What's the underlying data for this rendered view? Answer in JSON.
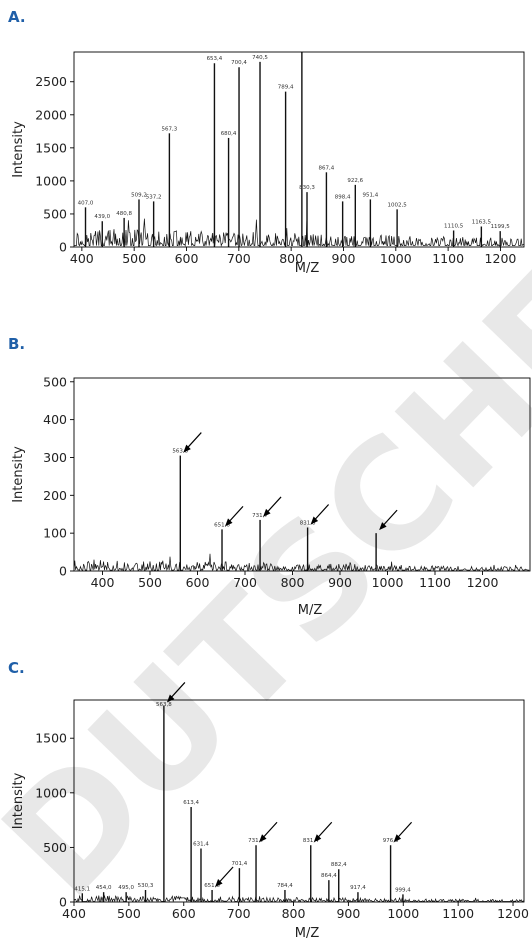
{
  "colors": {
    "panel_letter": "#1f5fa8",
    "trace": "#111111",
    "watermark": "#e8e8e8"
  },
  "watermark": "DUTSCHER",
  "chart_data": [
    {
      "type": "line",
      "panel": "A.",
      "xlabel": "M/Z",
      "ylabel": "Intensity",
      "xlim": [
        385,
        1245
      ],
      "ylim": [
        0,
        2950
      ],
      "xticks": [
        400,
        500,
        600,
        700,
        800,
        900,
        1000,
        1100,
        1200
      ],
      "yticks": [
        0,
        500,
        1000,
        1500,
        2000,
        2500
      ],
      "noise_level": 260,
      "peaks": [
        {
          "x": 407.0,
          "y": 600,
          "label": "407,0"
        },
        {
          "x": 439.0,
          "y": 390,
          "label": "439,0"
        },
        {
          "x": 480.8,
          "y": 440,
          "label": "480,8"
        },
        {
          "x": 509.2,
          "y": 720,
          "label": "509,2"
        },
        {
          "x": 537.2,
          "y": 690,
          "label": "537,2"
        },
        {
          "x": 567.3,
          "y": 1720,
          "label": "567,3"
        },
        {
          "x": 653.4,
          "y": 2780,
          "label": "653,4"
        },
        {
          "x": 680.4,
          "y": 1650,
          "label": "680,4"
        },
        {
          "x": 700.4,
          "y": 2720,
          "label": "700,4"
        },
        {
          "x": 740.5,
          "y": 2800,
          "label": "740,5"
        },
        {
          "x": 789.4,
          "y": 2350,
          "label": "789,4"
        },
        {
          "x": 820.5,
          "y": 2950,
          "label": ""
        },
        {
          "x": 830.3,
          "y": 830,
          "label": "830,3"
        },
        {
          "x": 867.4,
          "y": 1130,
          "label": "867,4"
        },
        {
          "x": 898.4,
          "y": 690,
          "label": "898,4"
        },
        {
          "x": 922.6,
          "y": 940,
          "label": "922,6"
        },
        {
          "x": 951.4,
          "y": 720,
          "label": "951,4"
        },
        {
          "x": 1002.5,
          "y": 570,
          "label": "1002,5"
        },
        {
          "x": 1110.5,
          "y": 250,
          "label": "1110,5"
        },
        {
          "x": 1163.5,
          "y": 310,
          "label": "1163,5"
        },
        {
          "x": 1199.5,
          "y": 240,
          "label": "1199,5"
        }
      ],
      "arrows": []
    },
    {
      "type": "line",
      "panel": "B.",
      "xlabel": "M/Z",
      "ylabel": "Intensity",
      "xlim": [
        340,
        1300
      ],
      "ylim": [
        0,
        510
      ],
      "xticks": [
        400,
        500,
        600,
        700,
        800,
        900,
        1000,
        1100,
        1200
      ],
      "yticks": [
        0,
        100,
        200,
        300,
        400,
        500
      ],
      "noise_level": 30,
      "peaks": [
        {
          "x": 563.8,
          "y": 305,
          "label": "563,8"
        },
        {
          "x": 651.6,
          "y": 110,
          "label": "651,6"
        },
        {
          "x": 731.7,
          "y": 135,
          "label": "731,7"
        },
        {
          "x": 831.8,
          "y": 115,
          "label": "831,8"
        },
        {
          "x": 976.0,
          "y": 100,
          "label": ""
        }
      ],
      "arrows": [
        {
          "x": 563.8,
          "y": 305
        },
        {
          "x": 651.6,
          "y": 110
        },
        {
          "x": 731.7,
          "y": 135
        },
        {
          "x": 831.8,
          "y": 115
        },
        {
          "x": 976.0,
          "y": 100
        }
      ]
    },
    {
      "type": "line",
      "panel": "C.",
      "xlabel": "M/Z",
      "ylabel": "Intensity",
      "xlim": [
        400,
        1220
      ],
      "ylim": [
        0,
        1850
      ],
      "xticks": [
        400,
        500,
        600,
        700,
        800,
        900,
        1000,
        1100,
        1200
      ],
      "yticks": [
        0,
        500,
        1000,
        1500
      ],
      "noise_level": 60,
      "peaks": [
        {
          "x": 415.1,
          "y": 80,
          "label": "415,1"
        },
        {
          "x": 454.0,
          "y": 90,
          "label": "454,0"
        },
        {
          "x": 495.0,
          "y": 90,
          "label": "495,0"
        },
        {
          "x": 530.3,
          "y": 110,
          "label": "530,3"
        },
        {
          "x": 563.8,
          "y": 1800,
          "label": "563,8"
        },
        {
          "x": 613.4,
          "y": 870,
          "label": "613,4"
        },
        {
          "x": 631.4,
          "y": 490,
          "label": "631,4"
        },
        {
          "x": 651.6,
          "y": 110,
          "label": "651,6"
        },
        {
          "x": 701.4,
          "y": 310,
          "label": "701,4"
        },
        {
          "x": 731.7,
          "y": 520,
          "label": "731,7"
        },
        {
          "x": 784.4,
          "y": 110,
          "label": "784,4"
        },
        {
          "x": 831.4,
          "y": 520,
          "label": "831,4"
        },
        {
          "x": 864.4,
          "y": 200,
          "label": "864,4"
        },
        {
          "x": 882.4,
          "y": 300,
          "label": "882,4"
        },
        {
          "x": 917.4,
          "y": 90,
          "label": "917,4"
        },
        {
          "x": 976.9,
          "y": 520,
          "label": "976,9"
        },
        {
          "x": 999.4,
          "y": 70,
          "label": "999,4"
        }
      ],
      "arrows": [
        {
          "x": 563.8,
          "y": 1800
        },
        {
          "x": 651.6,
          "y": 110
        },
        {
          "x": 731.7,
          "y": 520
        },
        {
          "x": 831.4,
          "y": 520
        },
        {
          "x": 976.9,
          "y": 520
        }
      ]
    }
  ]
}
